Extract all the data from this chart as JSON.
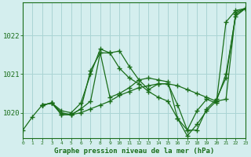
{
  "bg_color": "#d4eeee",
  "grid_color": "#aad4d4",
  "line_color": "#1a6e1a",
  "xlabel": "Graphe pression niveau de la mer (hPa)",
  "xmin": 0,
  "xmax": 23,
  "ymin": 1019.35,
  "ymax": 1022.85,
  "yticks": [
    1020,
    1021,
    1022
  ],
  "series": [
    {
      "x": [
        0,
        1,
        2,
        3,
        4,
        5,
        6,
        7,
        8,
        9,
        10,
        11,
        12,
        13,
        14,
        15,
        16,
        17,
        18,
        19,
        20,
        21,
        22,
        23
      ],
      "y": [
        1019.55,
        1019.9,
        1020.2,
        1020.25,
        1020.05,
        1020.0,
        1020.25,
        1021.0,
        1021.65,
        1021.55,
        1021.6,
        1021.2,
        1020.85,
        1020.6,
        1020.75,
        1020.75,
        1020.2,
        1019.55,
        1020.05,
        1020.35,
        1020.25,
        1022.35,
        1022.65,
        1022.7
      ]
    },
    {
      "x": [
        2,
        3,
        4,
        5,
        6,
        7,
        8,
        9,
        10,
        11,
        12,
        13,
        14,
        15,
        16,
        17,
        18,
        19,
        20,
        21,
        22,
        23
      ],
      "y": [
        1020.2,
        1020.25,
        1020.0,
        1019.95,
        1020.0,
        1020.1,
        1020.2,
        1020.3,
        1020.45,
        1020.55,
        1020.65,
        1020.7,
        1020.75,
        1020.75,
        1020.7,
        1020.6,
        1020.5,
        1020.4,
        1020.3,
        1020.35,
        1022.6,
        1022.7
      ]
    },
    {
      "x": [
        2,
        3,
        4,
        5,
        6,
        7,
        8,
        9,
        10,
        11,
        12,
        13,
        14,
        15,
        16,
        17,
        18,
        19,
        20,
        21,
        22,
        23
      ],
      "y": [
        1020.2,
        1020.25,
        1019.95,
        1019.95,
        1020.1,
        1021.1,
        1021.55,
        1020.4,
        1020.5,
        1020.65,
        1020.85,
        1020.9,
        1020.85,
        1020.8,
        1019.85,
        1019.55,
        1019.55,
        1020.1,
        1020.35,
        1020.9,
        1022.55,
        1022.7
      ]
    },
    {
      "x": [
        2,
        3,
        4,
        5,
        6,
        7,
        8,
        9,
        10,
        11,
        12,
        13,
        14,
        15,
        16,
        17,
        18,
        19,
        20,
        21,
        22,
        23
      ],
      "y": [
        1020.2,
        1020.25,
        1019.95,
        1019.95,
        1020.1,
        1020.3,
        1021.55,
        1021.55,
        1021.15,
        1020.9,
        1020.75,
        1020.55,
        1020.4,
        1020.3,
        1019.85,
        1019.4,
        1019.7,
        1020.05,
        1020.3,
        1021.0,
        1022.5,
        1022.7
      ]
    }
  ]
}
